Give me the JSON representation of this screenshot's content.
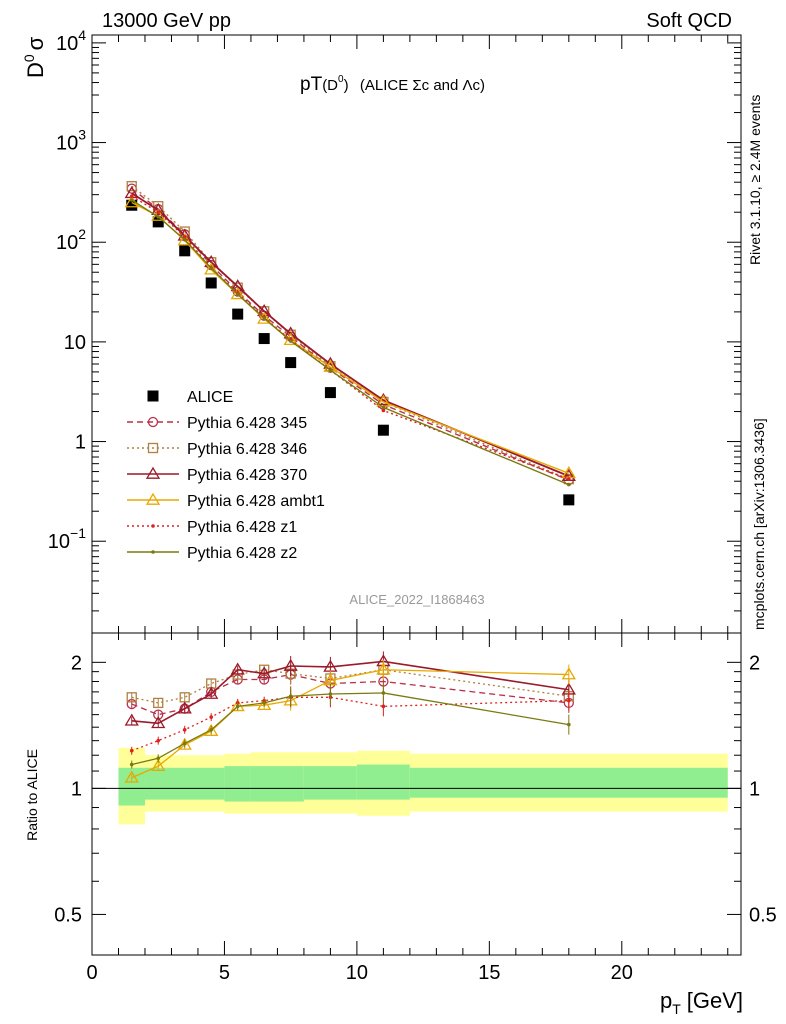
{
  "header": {
    "left": "13000 GeV pp",
    "right": "Soft QCD"
  },
  "side_labels": {
    "rivet": "Rivet 3.1.10, ≥ 2.4M events",
    "mcplots": "mcplots.cern.ch [arXiv:1306.3436]"
  },
  "colors": {
    "data": "#000000",
    "p345": "#b8304a",
    "p346": "#b08040",
    "p370": "#9a1a2a",
    "ambt1": "#e8a800",
    "z1": "#e02020",
    "z2": "#7a7a10",
    "band_inner": "#90ee90",
    "band_outer": "#ffff99",
    "watermark": "#999999"
  },
  "chart_data": [
    {
      "type": "scatter",
      "panel": "main",
      "title_main": "pT",
      "title_sub": "(D",
      "title_sup": "0",
      "title_close": ")",
      "title_extra": "(ALICE Σc and Λc)",
      "ylabel_main": "D",
      "ylabel_sup": "0",
      "ylabel_tail": "σ",
      "watermark": "ALICE_2022_I1868463",
      "y_scale": "log",
      "ylim": [
        0.012,
        12000
      ],
      "xlim": [
        0,
        24.5
      ],
      "y_ticks": [
        {
          "v": 10000,
          "base": "10",
          "exp": "4"
        },
        {
          "v": 1000,
          "base": "10",
          "exp": "3"
        },
        {
          "v": 100,
          "base": "10",
          "exp": "2"
        },
        {
          "v": 10,
          "base": "10",
          "exp": ""
        },
        {
          "v": 1,
          "base": "1",
          "exp": ""
        },
        {
          "v": 0.1,
          "base": "10",
          "exp": "−1"
        }
      ],
      "x": [
        1.5,
        2.5,
        3.5,
        4.5,
        5.5,
        6.5,
        7.5,
        9.0,
        11.0,
        18.0
      ],
      "series": [
        {
          "key": "data",
          "name": "ALICE",
          "values": [
            235,
            160,
            82,
            39,
            19,
            10.8,
            6.2,
            3.1,
            1.3,
            0.26
          ]
        },
        {
          "key": "p345",
          "name": "Pythia 6.428 345",
          "values": [
            345,
            215,
            120,
            59,
            32,
            18.3,
            11.3,
            5.5,
            2.35,
            0.41
          ]
        },
        {
          "key": "p346",
          "name": "Pythia 6.428 346",
          "values": [
            365,
            230,
            128,
            63,
            35,
            20.3,
            11.8,
            5.7,
            2.5,
            0.42
          ]
        },
        {
          "key": "p370",
          "name": "Pythia 6.428 370",
          "values": [
            310,
            210,
            116,
            63,
            36,
            20.3,
            12.1,
            6.0,
            2.6,
            0.45
          ]
        },
        {
          "key": "ambt1",
          "name": "Pythia 6.428 ambt1",
          "values": [
            250,
            183,
            104,
            53,
            30,
            17.0,
            10.4,
            5.6,
            2.5,
            0.48
          ]
        },
        {
          "key": "z1",
          "name": "Pythia 6.428 z1",
          "values": [
            290,
            200,
            113,
            55,
            31,
            17.5,
            10.5,
            5.2,
            2.05,
            0.42
          ]
        },
        {
          "key": "z2",
          "name": "Pythia 6.428 z2",
          "values": [
            265,
            180,
            106,
            55,
            30,
            17.3,
            10.2,
            5.2,
            2.2,
            0.37
          ]
        }
      ]
    },
    {
      "type": "scatter",
      "panel": "ratio",
      "ylabel": "Ratio to ALICE",
      "xlabel_main": "p",
      "xlabel_sub": "T",
      "xlabel_unit": "[GeV]",
      "y_scale": "log",
      "ylim": [
        0.4,
        2.35
      ],
      "xlim": [
        0,
        24.5
      ],
      "x_ticks": [
        0,
        5,
        10,
        15,
        20
      ],
      "y_ticks_left": [
        "2",
        "1",
        "0.5"
      ],
      "y_ticks_right": [
        "2",
        "1",
        "0.5"
      ],
      "y_tick_values": [
        2,
        1,
        0.5
      ],
      "bands": [
        {
          "x1": 1.0,
          "x2": 2.0,
          "inner": [
            0.91,
            1.12
          ],
          "outer": [
            0.82,
            1.25
          ]
        },
        {
          "x1": 2.0,
          "x2": 5.0,
          "inner": [
            0.94,
            1.12
          ],
          "outer": [
            0.88,
            1.2
          ]
        },
        {
          "x1": 5.0,
          "x2": 6.0,
          "inner": [
            0.93,
            1.13
          ],
          "outer": [
            0.87,
            1.21
          ]
        },
        {
          "x1": 6.0,
          "x2": 8.0,
          "inner": [
            0.93,
            1.13
          ],
          "outer": [
            0.87,
            1.22
          ]
        },
        {
          "x1": 8.0,
          "x2": 10.0,
          "inner": [
            0.94,
            1.13
          ],
          "outer": [
            0.87,
            1.22
          ]
        },
        {
          "x1": 10.0,
          "x2": 12.0,
          "inner": [
            0.94,
            1.14
          ],
          "outer": [
            0.86,
            1.23
          ]
        },
        {
          "x1": 12.0,
          "x2": 24.0,
          "inner": [
            0.95,
            1.12
          ],
          "outer": [
            0.88,
            1.21
          ]
        }
      ],
      "x": [
        1.5,
        2.5,
        3.5,
        4.5,
        5.5,
        6.5,
        7.5,
        9.0,
        11.0,
        18.0
      ],
      "series": [
        {
          "key": "p345",
          "name": "Pythia 6.428 345",
          "values": [
            1.59,
            1.5,
            1.55,
            1.7,
            1.82,
            1.82,
            1.87,
            1.78,
            1.8,
            1.6
          ]
        },
        {
          "key": "p346",
          "name": "Pythia 6.428 346",
          "values": [
            1.65,
            1.6,
            1.65,
            1.78,
            1.87,
            1.92,
            1.88,
            1.83,
            1.92,
            1.66
          ]
        },
        {
          "key": "p370",
          "name": "Pythia 6.428 370",
          "values": [
            1.45,
            1.43,
            1.55,
            1.68,
            1.92,
            1.88,
            1.96,
            1.95,
            2.01,
            1.72
          ]
        },
        {
          "key": "ambt1",
          "name": "Pythia 6.428 ambt1",
          "values": [
            1.06,
            1.13,
            1.27,
            1.37,
            1.57,
            1.58,
            1.62,
            1.81,
            1.92,
            1.87
          ]
        },
        {
          "key": "z1",
          "name": "Pythia 6.428 z1",
          "values": [
            1.23,
            1.3,
            1.38,
            1.48,
            1.6,
            1.62,
            1.65,
            1.65,
            1.57,
            1.62
          ]
        },
        {
          "key": "z2",
          "name": "Pythia 6.428 z2",
          "values": [
            1.14,
            1.18,
            1.28,
            1.38,
            1.57,
            1.6,
            1.66,
            1.68,
            1.69,
            1.42
          ]
        }
      ]
    }
  ]
}
